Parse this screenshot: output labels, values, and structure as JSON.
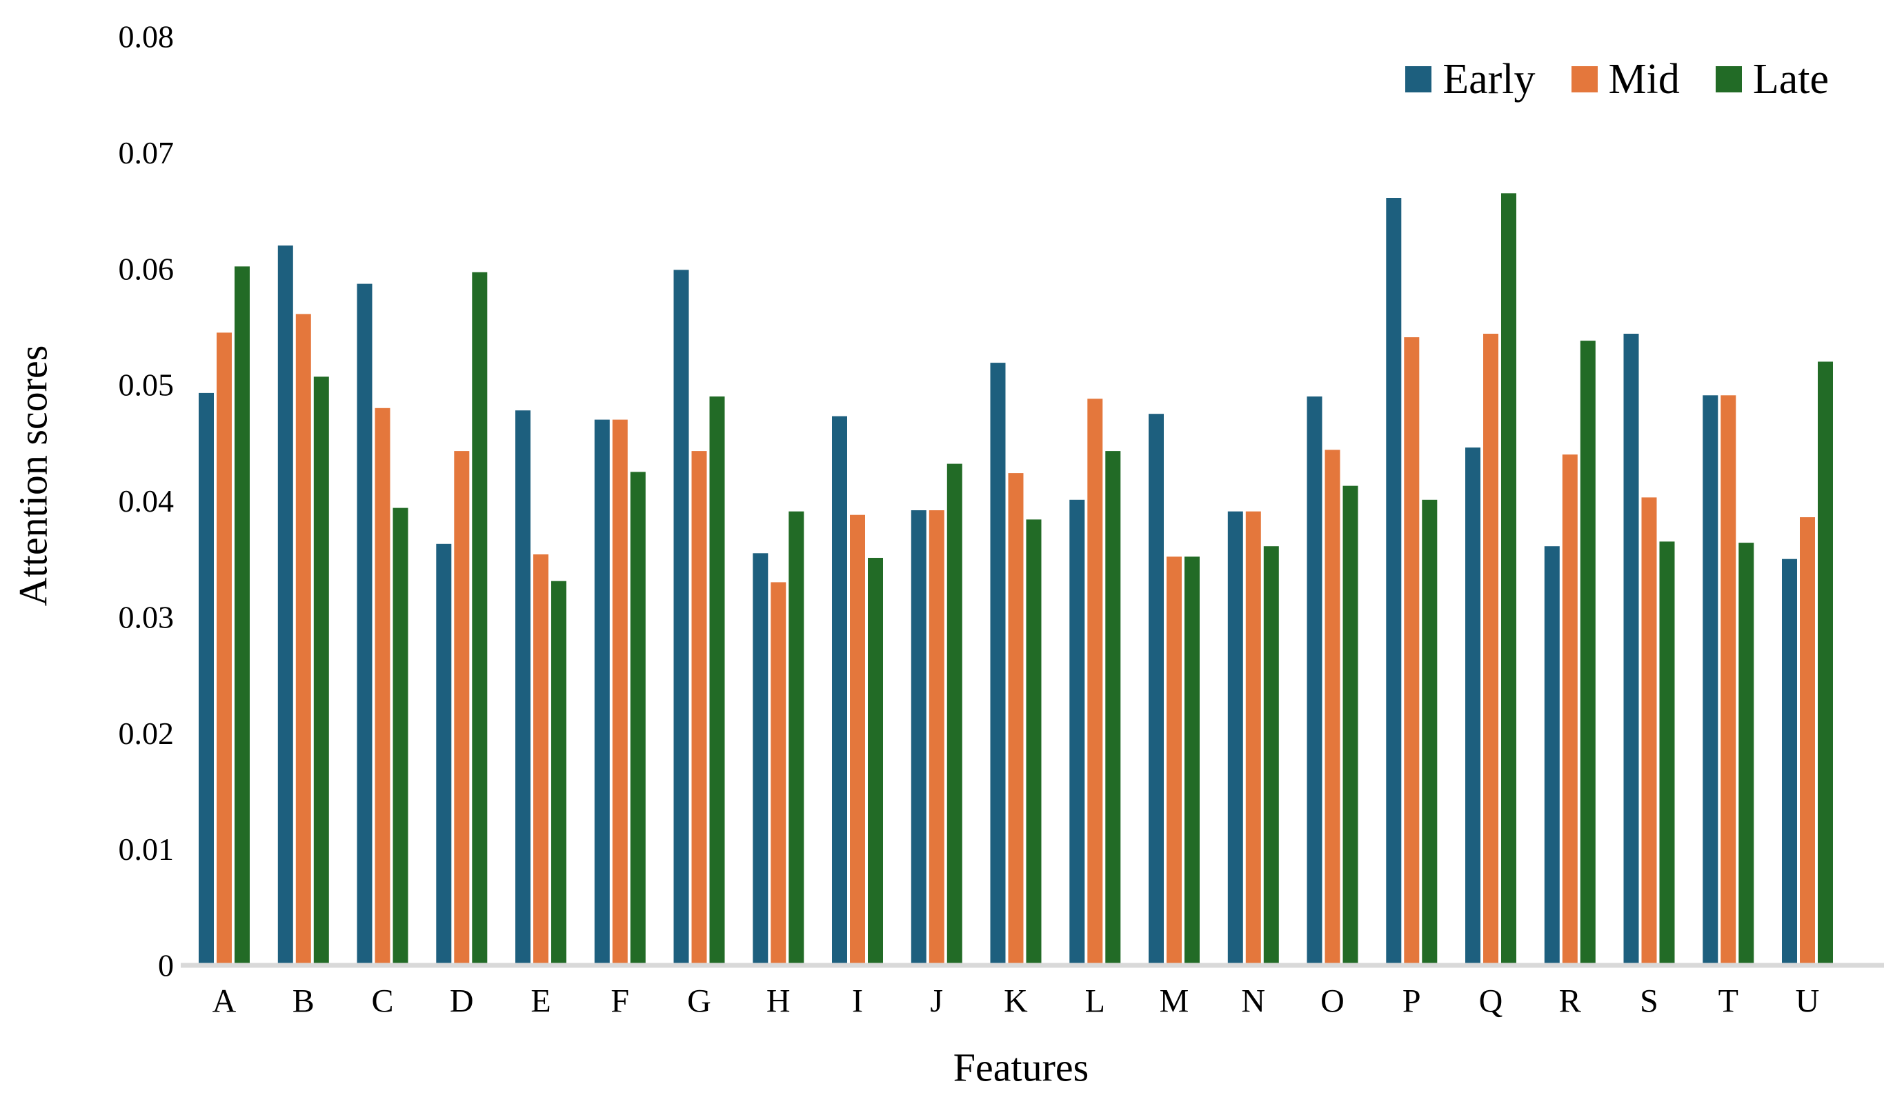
{
  "chart_data": {
    "type": "bar",
    "title": "",
    "xlabel": "Features",
    "ylabel": "Attention scores",
    "categories": [
      "A",
      "B",
      "C",
      "D",
      "E",
      "F",
      "G",
      "H",
      "I",
      "J",
      "K",
      "L",
      "M",
      "N",
      "O",
      "P",
      "Q",
      "R",
      "S",
      "T",
      "U"
    ],
    "series": [
      {
        "name": "Early",
        "color": "#1d5f7e",
        "values": [
          0.0493,
          0.062,
          0.0587,
          0.0363,
          0.0478,
          0.047,
          0.0599,
          0.0355,
          0.0473,
          0.0392,
          0.0519,
          0.0401,
          0.0475,
          0.0391,
          0.049,
          0.0661,
          0.0446,
          0.0361,
          0.0544,
          0.0491,
          0.035
        ]
      },
      {
        "name": "Mid",
        "color": "#e4773c",
        "values": [
          0.0545,
          0.0561,
          0.048,
          0.0443,
          0.0354,
          0.047,
          0.0443,
          0.033,
          0.0388,
          0.0392,
          0.0424,
          0.0488,
          0.0352,
          0.0391,
          0.0444,
          0.0541,
          0.0544,
          0.044,
          0.0403,
          0.0491,
          0.0386
        ]
      },
      {
        "name": "Late",
        "color": "#226b26",
        "values": [
          0.0602,
          0.0507,
          0.0394,
          0.0597,
          0.0331,
          0.0425,
          0.049,
          0.0391,
          0.0351,
          0.0432,
          0.0384,
          0.0443,
          0.0352,
          0.0361,
          0.0413,
          0.0401,
          0.0665,
          0.0538,
          0.0365,
          0.0364,
          0.052
        ]
      }
    ],
    "ylim": [
      0,
      0.08
    ],
    "y_ticks": [
      "0",
      "0.01",
      "0.02",
      "0.03",
      "0.04",
      "0.05",
      "0.06",
      "0.07",
      "0.08"
    ],
    "grid": false,
    "legend_position": "top-right",
    "axis_line_color": "#d9d9d9"
  }
}
